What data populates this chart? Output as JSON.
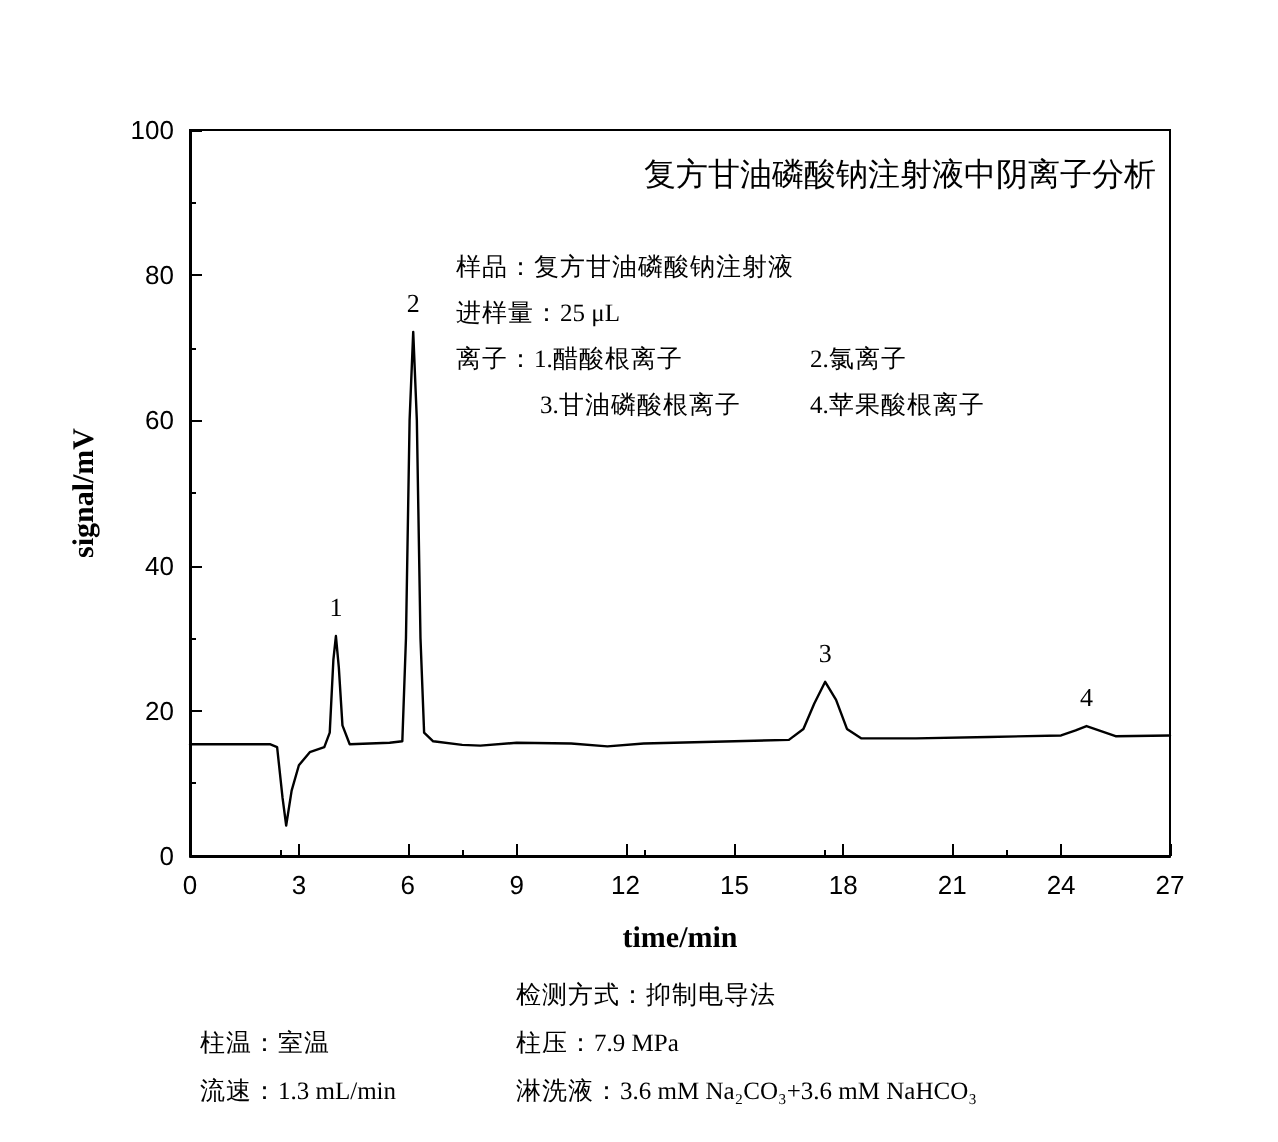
{
  "chart_data": {
    "type": "line",
    "title": "复方甘油磷酸钠注射液中阴离子分析",
    "xlabel": "time/min",
    "ylabel": "signal/mV",
    "x": [
      0,
      2.2,
      2.4,
      2.55,
      2.65,
      2.8,
      3.0,
      3.3,
      3.7,
      3.85,
      3.95,
      4.02,
      4.1,
      4.2,
      4.4,
      5.5,
      5.85,
      5.95,
      6.05,
      6.15,
      6.25,
      6.35,
      6.45,
      6.7,
      7.5,
      8,
      9,
      10.5,
      11.5,
      12.5,
      15,
      16.5,
      16.9,
      17.2,
      17.5,
      17.8,
      18.1,
      18.5,
      20,
      22,
      24,
      24.4,
      24.7,
      25.1,
      25.5,
      27
    ],
    "series": [
      {
        "color": "#000000",
        "values": [
          15.4,
          15.4,
          15.0,
          8,
          4.2,
          9,
          12.5,
          14.3,
          15.0,
          17,
          27,
          30.3,
          26,
          18,
          15.4,
          15.6,
          15.8,
          30,
          60,
          72.2,
          60,
          30,
          17,
          15.8,
          15.3,
          15.2,
          15.6,
          15.5,
          15.1,
          15.5,
          15.8,
          16.0,
          17.5,
          21,
          24,
          21.5,
          17.5,
          16.2,
          16.2,
          16.4,
          16.6,
          17.3,
          17.9,
          17.2,
          16.5,
          16.6
        ]
      }
    ],
    "xlim": [
      0,
      27
    ],
    "xticks": [
      0,
      3,
      6,
      9,
      12,
      15,
      18,
      21,
      24,
      27
    ],
    "ylim": [
      0,
      100
    ],
    "yticks": [
      0,
      20,
      40,
      60,
      80,
      100
    ],
    "marker": "none",
    "line_style": "solid",
    "annotations": [
      "样品：复方甘油磷酸钠注射液",
      "进样量：25 μL",
      "离子：1.醋酸根离子",
      "2.氯离子",
      "3.甘油磷酸根离子",
      "4.苹果酸根离子",
      "柱温：室温",
      "流速：1.3 mL/min",
      "检测方式：抑制电导法",
      "柱压：7.9 MPa",
      "淋洗液：3.6 mM Na₂CO₃+3.6 mM NaHCO₃",
      {
        "text": "1",
        "x": 4.02,
        "y": 30.3
      },
      {
        "text": "2",
        "x": 6.15,
        "y": 72.2
      },
      {
        "text": "3",
        "x": 17.5,
        "y": 24
      },
      {
        "text": "4",
        "x": 24.7,
        "y": 17.9
      }
    ]
  }
}
